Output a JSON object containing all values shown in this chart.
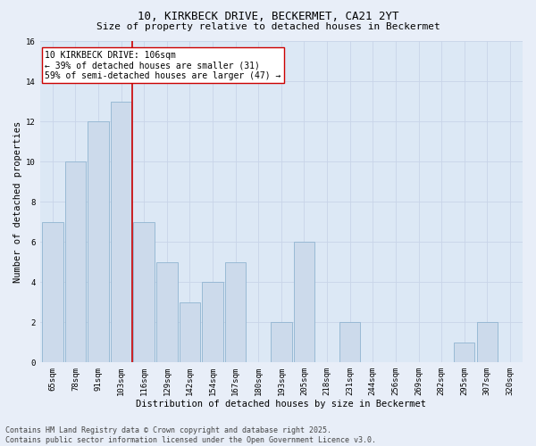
{
  "title_line1": "10, KIRKBECK DRIVE, BECKERMET, CA21 2YT",
  "title_line2": "Size of property relative to detached houses in Beckermet",
  "xlabel": "Distribution of detached houses by size in Beckermet",
  "ylabel": "Number of detached properties",
  "bins": [
    "65sqm",
    "78sqm",
    "91sqm",
    "103sqm",
    "116sqm",
    "129sqm",
    "142sqm",
    "154sqm",
    "167sqm",
    "180sqm",
    "193sqm",
    "205sqm",
    "218sqm",
    "231sqm",
    "244sqm",
    "256sqm",
    "269sqm",
    "282sqm",
    "295sqm",
    "307sqm",
    "320sqm"
  ],
  "values": [
    7,
    10,
    12,
    13,
    7,
    5,
    3,
    4,
    5,
    0,
    2,
    6,
    0,
    2,
    0,
    0,
    0,
    0,
    1,
    2,
    0
  ],
  "bar_color": "#ccdaeb",
  "bar_edge_color": "#90b4d0",
  "vline_x_index": 3,
  "vline_color": "#cc0000",
  "annotation_text": "10 KIRKBECK DRIVE: 106sqm\n← 39% of detached houses are smaller (31)\n59% of semi-detached houses are larger (47) →",
  "annotation_box_facecolor": "#ffffff",
  "annotation_box_edgecolor": "#cc0000",
  "ylim": [
    0,
    16
  ],
  "yticks": [
    0,
    2,
    4,
    6,
    8,
    10,
    12,
    14,
    16
  ],
  "grid_color": "#c8d4e8",
  "plot_bg_color": "#dce8f5",
  "fig_bg_color": "#e8eef8",
  "footnote": "Contains HM Land Registry data © Crown copyright and database right 2025.\nContains public sector information licensed under the Open Government Licence v3.0.",
  "title1_fontsize": 9,
  "title2_fontsize": 8,
  "axis_label_fontsize": 7.5,
  "tick_fontsize": 6.5,
  "annotation_fontsize": 7,
  "footnote_fontsize": 6
}
